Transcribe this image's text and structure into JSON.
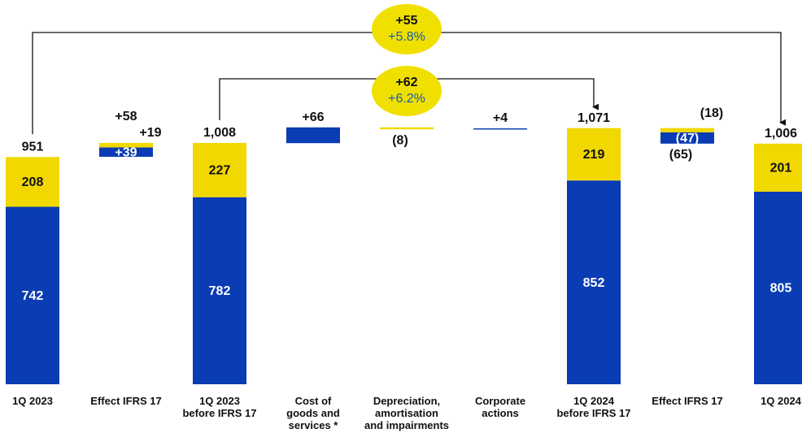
{
  "chart_data": {
    "type": "waterfall",
    "categories": [
      "1Q 2023",
      "Effect IFRS 17",
      "1Q 2023\nbefore IFRS 17",
      "Cost of\ngoods and\nservices *",
      "Depreciation,\namortisation\nand impairments",
      "Corporate\nactions",
      "1Q 2024\nbefore IFRS 17",
      "Effect IFRS 17",
      "1Q 2024"
    ],
    "measure": [
      "total",
      "relative",
      "total",
      "relative",
      "relative",
      "relative",
      "total",
      "relative",
      "total"
    ],
    "totals": {
      "values": [
        951,
        58,
        1008,
        66,
        -8,
        4,
        1071,
        -65,
        1006
      ],
      "value_labels": [
        "951",
        "+58",
        "1,008",
        "+66",
        "(8)",
        "+4",
        "1,071",
        "(65)",
        "1,006"
      ]
    },
    "series": [
      {
        "color": "#0a3cb4",
        "values": [
          742,
          39,
          782,
          66,
          null,
          4,
          852,
          -47,
          805
        ],
        "value_labels": [
          "742",
          "+39",
          "782",
          null,
          null,
          null,
          "852",
          "(47)",
          "805"
        ]
      },
      {
        "color": "#f0d800",
        "values": [
          208,
          19,
          227,
          null,
          -8,
          null,
          219,
          -18,
          201
        ],
        "value_labels": [
          "208",
          "+19",
          "227",
          null,
          null,
          null,
          "219",
          "(18)",
          "201"
        ]
      }
    ],
    "annotations": [
      {
        "text": "+55",
        "subtext": "+5.8%"
      },
      {
        "text": "+62",
        "subtext": "+6.2%"
      }
    ]
  }
}
